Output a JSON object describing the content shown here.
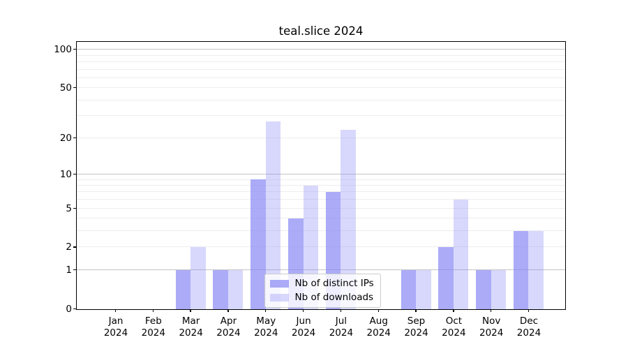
{
  "title": "teal.slice 2024",
  "chart_data": {
    "type": "bar",
    "title": "teal.slice 2024",
    "x_tick_months": [
      "Jan",
      "Feb",
      "Mar",
      "Apr",
      "May",
      "Jun",
      "Jul",
      "Aug",
      "Sep",
      "Oct",
      "Nov",
      "Dec"
    ],
    "x_tick_year": "2024",
    "series": [
      {
        "name": "Nb of distinct IPs",
        "color": "rgba(136,136,245,0.70)",
        "values": [
          0,
          0,
          1,
          1,
          9,
          4,
          7,
          0,
          1,
          2,
          1,
          3
        ]
      },
      {
        "name": "Nb of downloads",
        "color": "rgba(136,136,245,0.33)",
        "values": [
          0,
          0,
          2,
          1,
          27,
          8,
          23,
          0,
          1,
          6,
          1,
          3
        ]
      }
    ],
    "y_scale": "log10(1+v)",
    "y_ticks": [
      {
        "value": 100,
        "label": "100"
      },
      {
        "value": 50,
        "label": "50"
      },
      {
        "value": 20,
        "label": "20"
      },
      {
        "value": 10,
        "label": "10"
      },
      {
        "value": 5,
        "label": "5"
      },
      {
        "value": 2,
        "label": "2"
      },
      {
        "value": 1,
        "label": "1"
      },
      {
        "value": 0,
        "label": "0"
      }
    ],
    "grid_major_values": [
      1,
      10,
      100
    ],
    "grid_minor_values": [
      2,
      3,
      4,
      5,
      6,
      7,
      8,
      9,
      20,
      30,
      40,
      50,
      60,
      70,
      80,
      90
    ],
    "ylim": [
      0,
      115
    ],
    "grid": "on",
    "legend_position": "lower center",
    "xlabel": "",
    "ylabel": ""
  },
  "colors": {
    "bar_dark": "rgba(136,136,245,0.70)",
    "bar_light": "rgba(136,136,245,0.33)",
    "grid_major": "#c4c4c4",
    "grid_minor": "#ededed",
    "spine": "#000000"
  }
}
